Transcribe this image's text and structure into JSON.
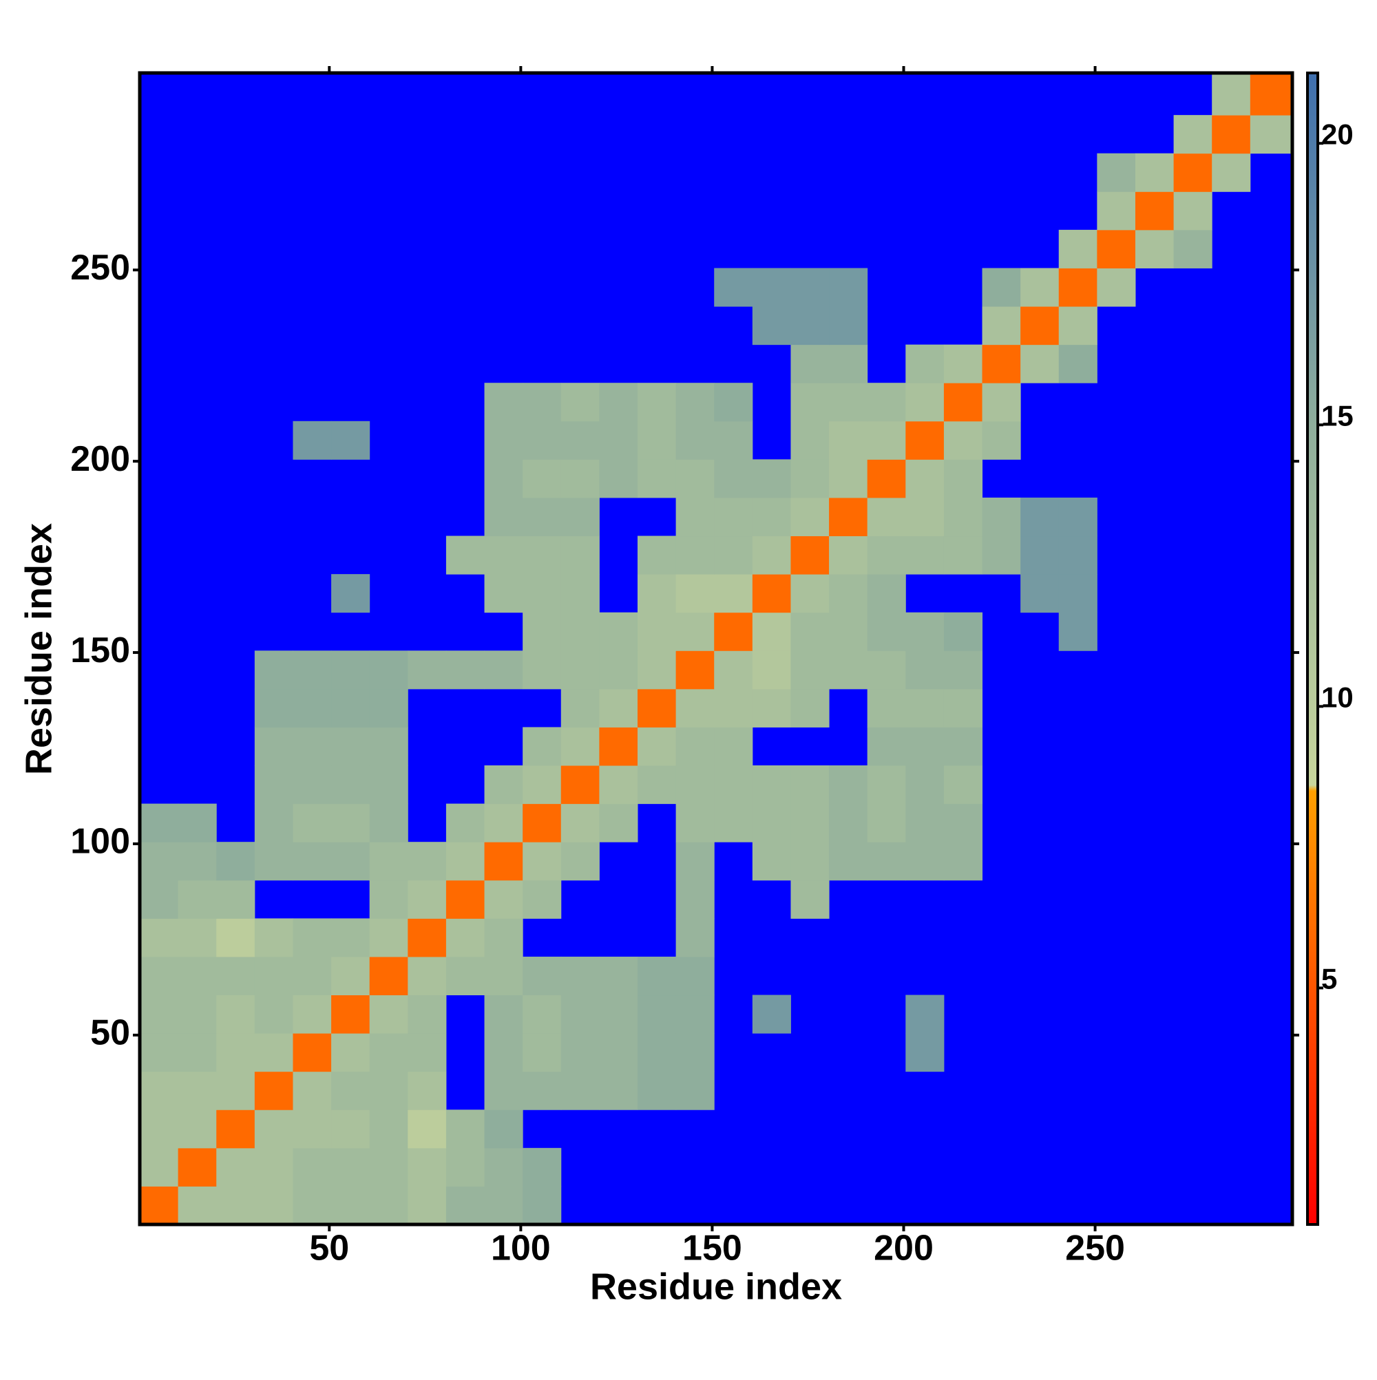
{
  "chart_data": {
    "type": "heatmap",
    "xlabel": "Residue index",
    "ylabel": "Residue index",
    "xlim": [
      0.5,
      301.5
    ],
    "ylim": [
      0.5,
      301.5
    ],
    "xticks": [
      50,
      100,
      150,
      200,
      250
    ],
    "yticks": [
      50,
      100,
      150,
      200,
      250
    ],
    "x_bins": [
      0.5,
      10.5,
      20.5,
      30.5,
      40.5,
      50.5,
      60.5,
      70.5,
      80.5,
      90.5,
      100.5,
      110.5,
      120.5,
      130.5,
      140.5,
      150.5,
      160.5,
      170.5,
      180.5,
      190.5,
      200.5,
      210.5,
      220.5,
      230.5,
      240.5,
      250.5,
      260.5,
      270.5,
      280.5,
      290.5,
      301.5
    ],
    "y_bins": [
      0.5,
      10.5,
      20.5,
      30.5,
      40.5,
      50.5,
      60.5,
      70.5,
      80.5,
      90.5,
      100.5,
      110.5,
      120.5,
      130.5,
      140.5,
      150.5,
      160.5,
      170.5,
      180.5,
      190.5,
      200.5,
      210.5,
      220.5,
      230.5,
      240.5,
      250.5,
      260.5,
      270.5,
      280.5,
      290.5,
      301.5
    ],
    "z": [
      [
        6,
        12,
        12,
        12,
        13,
        13,
        13,
        12,
        14,
        14,
        15,
        null,
        null,
        null,
        null,
        null,
        null,
        null,
        null,
        null,
        null,
        null,
        null,
        null,
        null,
        null,
        null,
        null,
        null,
        null
      ],
      [
        12,
        6,
        12,
        12,
        13,
        13,
        13,
        12,
        13,
        14,
        15,
        null,
        null,
        null,
        null,
        null,
        null,
        null,
        null,
        null,
        null,
        null,
        null,
        null,
        null,
        null,
        null,
        null,
        null,
        null
      ],
      [
        12,
        12,
        6,
        12,
        12,
        12,
        13,
        10,
        13,
        15,
        null,
        null,
        null,
        null,
        null,
        null,
        null,
        null,
        null,
        null,
        null,
        null,
        null,
        null,
        null,
        null,
        null,
        null,
        null,
        null
      ],
      [
        12,
        12,
        12,
        6,
        12,
        13,
        13,
        12,
        null,
        14,
        14,
        14,
        14,
        15,
        15,
        null,
        null,
        null,
        null,
        null,
        null,
        null,
        null,
        null,
        null,
        null,
        null,
        null,
        null,
        null
      ],
      [
        13,
        13,
        12,
        12,
        6,
        12,
        13,
        13,
        null,
        14,
        13,
        14,
        14,
        15,
        15,
        null,
        null,
        null,
        null,
        null,
        17,
        null,
        null,
        null,
        null,
        null,
        null,
        null,
        null,
        null
      ],
      [
        13,
        13,
        12,
        13,
        12,
        6,
        12,
        13,
        null,
        14,
        13,
        14,
        14,
        15,
        15,
        null,
        17,
        null,
        null,
        null,
        17,
        null,
        null,
        null,
        null,
        null,
        null,
        null,
        null,
        null
      ],
      [
        13,
        13,
        13,
        13,
        13,
        12,
        6,
        12,
        13,
        13,
        14,
        14,
        14,
        15,
        15,
        null,
        null,
        null,
        null,
        null,
        null,
        null,
        null,
        null,
        null,
        null,
        null,
        null,
        null,
        null
      ],
      [
        12,
        12,
        10,
        12,
        13,
        13,
        12,
        6,
        12,
        13,
        null,
        null,
        null,
        null,
        14,
        null,
        null,
        null,
        null,
        null,
        null,
        null,
        null,
        null,
        null,
        null,
        null,
        null,
        null,
        null
      ],
      [
        14,
        13,
        13,
        null,
        null,
        null,
        13,
        12,
        6,
        12,
        13,
        null,
        null,
        null,
        14,
        null,
        null,
        13,
        null,
        null,
        null,
        null,
        null,
        null,
        null,
        null,
        null,
        null,
        null,
        null
      ],
      [
        14,
        14,
        15,
        14,
        14,
        14,
        13,
        13,
        12,
        6,
        12,
        13,
        null,
        null,
        14,
        null,
        13,
        13,
        14,
        14,
        14,
        14,
        null,
        null,
        null,
        null,
        null,
        null,
        null,
        null
      ],
      [
        15,
        15,
        null,
        14,
        13,
        13,
        14,
        null,
        13,
        12,
        6,
        12,
        13,
        null,
        13,
        13,
        13,
        13,
        14,
        13,
        14,
        14,
        null,
        null,
        null,
        null,
        null,
        null,
        null,
        null
      ],
      [
        null,
        null,
        null,
        14,
        14,
        14,
        14,
        null,
        null,
        13,
        12,
        6,
        12,
        13,
        13,
        13,
        13,
        13,
        14,
        13,
        14,
        13,
        null,
        null,
        null,
        null,
        null,
        null,
        null,
        null
      ],
      [
        null,
        null,
        null,
        14,
        14,
        14,
        14,
        null,
        null,
        null,
        13,
        12,
        6,
        12,
        13,
        13,
        null,
        null,
        null,
        14,
        14,
        14,
        null,
        null,
        null,
        null,
        null,
        null,
        null,
        null
      ],
      [
        null,
        null,
        null,
        15,
        15,
        15,
        15,
        null,
        null,
        null,
        null,
        13,
        12,
        6,
        12,
        12,
        12,
        13,
        null,
        13,
        13,
        13,
        null,
        null,
        null,
        null,
        null,
        null,
        null,
        null
      ],
      [
        null,
        null,
        null,
        15,
        15,
        15,
        15,
        14,
        14,
        14,
        13,
        13,
        13,
        12,
        6,
        12,
        11,
        13,
        13,
        13,
        14,
        14,
        null,
        null,
        null,
        null,
        null,
        null,
        null,
        null
      ],
      [
        null,
        null,
        null,
        null,
        null,
        null,
        null,
        null,
        null,
        null,
        13,
        13,
        13,
        12,
        12,
        6,
        11,
        13,
        13,
        14,
        14,
        15,
        null,
        null,
        17,
        null,
        null,
        null,
        null,
        null
      ],
      [
        null,
        null,
        null,
        null,
        null,
        17,
        null,
        null,
        null,
        13,
        13,
        13,
        null,
        12,
        11,
        11,
        6,
        12,
        13,
        14,
        null,
        null,
        null,
        17,
        17,
        null,
        null,
        null,
        null,
        null
      ],
      [
        null,
        null,
        null,
        null,
        null,
        null,
        null,
        null,
        13,
        13,
        13,
        13,
        null,
        13,
        13,
        13,
        12,
        6,
        12,
        13,
        13,
        13,
        14,
        17,
        17,
        null,
        null,
        null,
        null,
        null
      ],
      [
        null,
        null,
        null,
        null,
        null,
        null,
        null,
        null,
        null,
        14,
        14,
        14,
        null,
        null,
        13,
        13,
        13,
        12,
        6,
        12,
        12,
        13,
        14,
        17,
        17,
        null,
        null,
        null,
        null,
        null
      ],
      [
        null,
        null,
        null,
        null,
        null,
        null,
        null,
        null,
        null,
        14,
        13,
        13,
        14,
        13,
        13,
        14,
        14,
        13,
        12,
        6,
        12,
        13,
        null,
        null,
        null,
        null,
        null,
        null,
        null,
        null
      ],
      [
        null,
        null,
        null,
        null,
        17,
        17,
        null,
        null,
        null,
        14,
        14,
        14,
        14,
        13,
        14,
        14,
        null,
        13,
        12,
        12,
        6,
        12,
        13,
        null,
        null,
        null,
        null,
        null,
        null,
        null
      ],
      [
        null,
        null,
        null,
        null,
        null,
        null,
        null,
        null,
        null,
        14,
        14,
        13,
        14,
        13,
        14,
        15,
        null,
        13,
        13,
        13,
        12,
        6,
        12,
        null,
        null,
        null,
        null,
        null,
        null,
        null
      ],
      [
        null,
        null,
        null,
        null,
        null,
        null,
        null,
        null,
        null,
        null,
        null,
        null,
        null,
        null,
        null,
        null,
        null,
        14,
        14,
        null,
        13,
        12,
        6,
        12,
        15,
        null,
        null,
        null,
        null,
        null
      ],
      [
        null,
        null,
        null,
        null,
        null,
        null,
        null,
        null,
        null,
        null,
        null,
        null,
        null,
        null,
        null,
        null,
        17,
        17,
        17,
        null,
        null,
        null,
        12,
        6,
        12,
        null,
        null,
        null,
        null,
        null
      ],
      [
        null,
        null,
        null,
        null,
        null,
        null,
        null,
        null,
        null,
        null,
        null,
        null,
        null,
        null,
        null,
        17,
        17,
        17,
        17,
        null,
        null,
        null,
        15,
        12,
        6,
        12,
        null,
        null,
        null,
        null
      ],
      [
        null,
        null,
        null,
        null,
        null,
        null,
        null,
        null,
        null,
        null,
        null,
        null,
        null,
        null,
        null,
        null,
        null,
        null,
        null,
        null,
        null,
        null,
        null,
        null,
        12,
        6,
        12,
        14,
        null,
        null
      ],
      [
        null,
        null,
        null,
        null,
        null,
        null,
        null,
        null,
        null,
        null,
        null,
        null,
        null,
        null,
        null,
        null,
        null,
        null,
        null,
        null,
        null,
        null,
        null,
        null,
        null,
        12,
        6,
        12,
        null,
        null
      ],
      [
        null,
        null,
        null,
        null,
        null,
        null,
        null,
        null,
        null,
        null,
        null,
        null,
        null,
        null,
        null,
        null,
        null,
        null,
        null,
        null,
        null,
        null,
        null,
        null,
        null,
        14,
        12,
        6,
        12,
        null
      ],
      [
        null,
        null,
        null,
        null,
        null,
        null,
        null,
        null,
        null,
        null,
        null,
        null,
        null,
        null,
        null,
        null,
        null,
        null,
        null,
        null,
        null,
        null,
        null,
        null,
        null,
        null,
        null,
        12,
        6,
        12
      ],
      [
        null,
        null,
        null,
        null,
        null,
        null,
        null,
        null,
        null,
        null,
        null,
        null,
        null,
        null,
        null,
        null,
        null,
        null,
        null,
        null,
        null,
        null,
        null,
        null,
        null,
        null,
        null,
        null,
        12,
        6
      ]
    ],
    "zlim": [
      0.8,
      21.25
    ],
    "zticks": [
      5,
      10,
      15,
      20
    ],
    "colorscale": [
      {
        "value": 0.8,
        "color": "#ff0000"
      },
      {
        "value": 5,
        "color": "#ff5500"
      },
      {
        "value": 8.5,
        "color": "#ffa000"
      },
      {
        "value": 8.6,
        "color": "#c8d69c"
      },
      {
        "value": 15,
        "color": "#8fae9c"
      },
      {
        "value": 21.25,
        "color": "#3f6fae"
      }
    ],
    "na_color": "#0000ff"
  }
}
